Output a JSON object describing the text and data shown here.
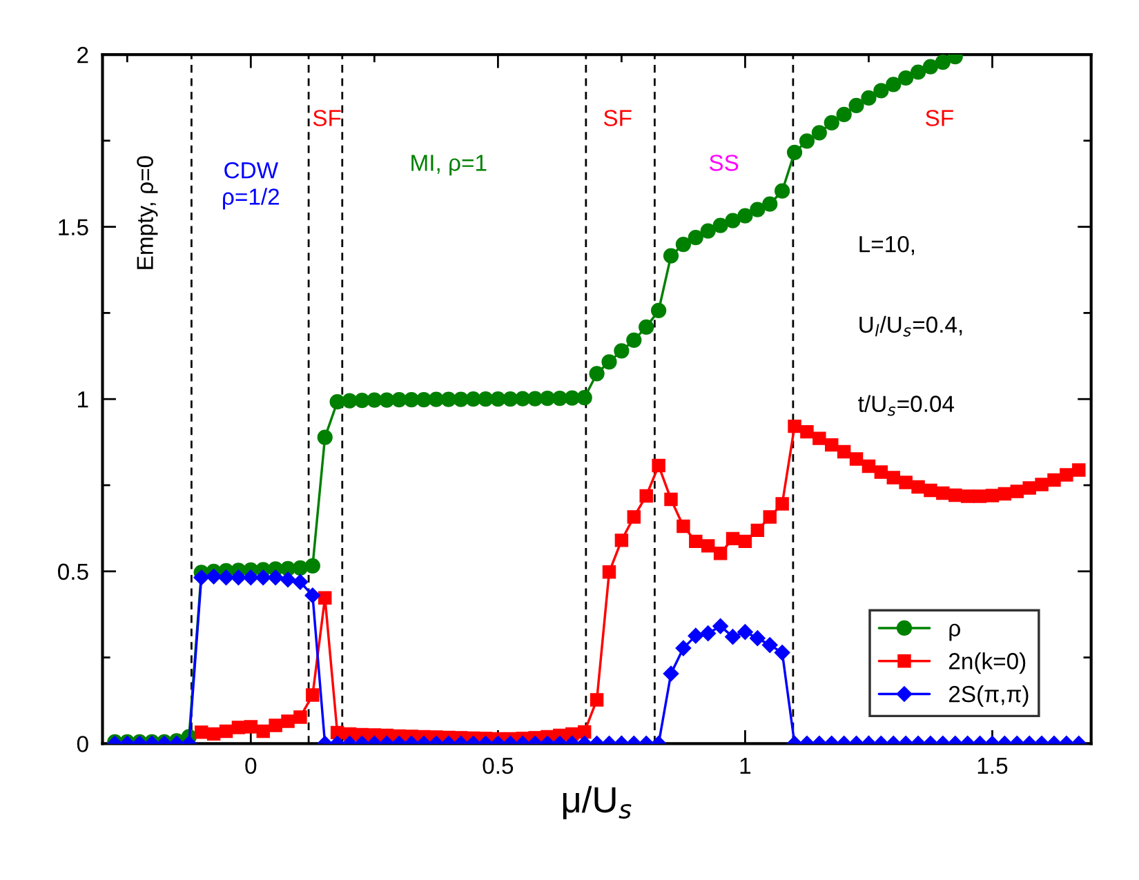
{
  "chart_data": {
    "type": "line",
    "xlabel": "μ/U$_{s}$",
    "x": [
      -0.275,
      -0.25,
      -0.225,
      -0.2,
      -0.175,
      -0.15,
      -0.125,
      -0.1,
      -0.075,
      -0.05,
      -0.025,
      0,
      0.025,
      0.05,
      0.075,
      0.1,
      0.125,
      0.15,
      0.175,
      0.2,
      0.225,
      0.25,
      0.275,
      0.3,
      0.325,
      0.35,
      0.375,
      0.4,
      0.425,
      0.45,
      0.475,
      0.5,
      0.525,
      0.55,
      0.575,
      0.6,
      0.625,
      0.65,
      0.675,
      0.7,
      0.725,
      0.75,
      0.775,
      0.8,
      0.825,
      0.85,
      0.875,
      0.9,
      0.925,
      0.95,
      0.975,
      1,
      1.025,
      1.05,
      1.075,
      1.1,
      1.125,
      1.15,
      1.175,
      1.2,
      1.225,
      1.25,
      1.275,
      1.3,
      1.325,
      1.35,
      1.375,
      1.4,
      1.425,
      1.45,
      1.475,
      1.5,
      1.525,
      1.55,
      1.575,
      1.6,
      1.625,
      1.65,
      1.675
    ],
    "series": [
      {
        "name": "ρ",
        "color": "#008000",
        "marker": "circle",
        "values": [
          0.005,
          0.005,
          0.005,
          0.005,
          0.005,
          0.008,
          0.02,
          0.497,
          0.5,
          0.502,
          0.503,
          0.504,
          0.505,
          0.507,
          0.508,
          0.51,
          0.516,
          0.889,
          0.992,
          0.995,
          0.996,
          0.997,
          0.997,
          0.998,
          0.998,
          0.998,
          0.999,
          0.999,
          0.999,
          1.0,
          1.0,
          1.0,
          1.0,
          1.001,
          1.001,
          1.002,
          1.002,
          1.003,
          1.004,
          1.074,
          1.108,
          1.14,
          1.171,
          1.209,
          1.257,
          1.416,
          1.449,
          1.469,
          1.488,
          1.504,
          1.518,
          1.532,
          1.55,
          1.566,
          1.604,
          1.716,
          1.749,
          1.773,
          1.802,
          1.826,
          1.852,
          1.874,
          1.895,
          1.913,
          1.932,
          1.949,
          1.965,
          1.978,
          1.994,
          null,
          null,
          null,
          null,
          null,
          null,
          null,
          null,
          null,
          null
        ]
      },
      {
        "name": "2n(k=0)",
        "color": "#ff0000",
        "marker": "square",
        "values": [
          null,
          null,
          null,
          null,
          null,
          null,
          null,
          0.033,
          0.028,
          0.036,
          0.047,
          0.049,
          0.036,
          0.053,
          0.065,
          0.077,
          0.141,
          0.423,
          0.032,
          0.028,
          0.026,
          0.025,
          0.024,
          0.022,
          0.021,
          0.02,
          0.019,
          0.018,
          0.017,
          0.016,
          0.015,
          0.014,
          0.014,
          0.015,
          0.017,
          0.02,
          0.024,
          0.028,
          0.034,
          0.127,
          0.498,
          0.59,
          0.658,
          0.719,
          0.807,
          0.709,
          0.631,
          0.587,
          0.574,
          0.552,
          0.595,
          0.587,
          0.619,
          0.658,
          0.696,
          0.921,
          0.905,
          0.886,
          0.867,
          0.847,
          0.826,
          0.805,
          0.788,
          0.772,
          0.758,
          0.745,
          0.735,
          0.727,
          0.721,
          0.718,
          0.718,
          0.72,
          0.725,
          0.732,
          0.742,
          0.752,
          0.765,
          0.78,
          0.794
        ]
      },
      {
        "name": "2S(π,π)",
        "color": "#0000ff",
        "marker": "diamond",
        "values": [
          0,
          0,
          0,
          0,
          0,
          0,
          0,
          0.482,
          0.485,
          0.482,
          0.482,
          0.482,
          0.482,
          0.482,
          0.476,
          0.469,
          0.43,
          0,
          0,
          0,
          0,
          0,
          0,
          0,
          0,
          0,
          0,
          0,
          0,
          0,
          0,
          0,
          0,
          0,
          0,
          0,
          0,
          0,
          0,
          0,
          0,
          0,
          0,
          0,
          0,
          0.203,
          0.277,
          0.313,
          0.32,
          0.341,
          0.31,
          0.324,
          0.306,
          0.286,
          0.264,
          0,
          0,
          0,
          0,
          0,
          0,
          0,
          0,
          0,
          0,
          0,
          0,
          0,
          0,
          0,
          0,
          0,
          0,
          0,
          0,
          0,
          0,
          0,
          0
        ]
      }
    ],
    "xlim": [
      -0.3,
      1.7
    ],
    "ylim": [
      0,
      2
    ],
    "xticks": [
      {
        "value": -0.25,
        "label": null
      },
      0,
      {
        "value": 0.25,
        "label": null
      },
      0.5,
      {
        "value": 0.75,
        "label": null
      },
      1,
      {
        "value": 1.25,
        "label": null
      },
      1.5
    ],
    "yticks": [
      0,
      {
        "value": 0.25,
        "label": null
      },
      0.5,
      {
        "value": 0.75,
        "label": null
      },
      1,
      {
        "value": 1.25,
        "label": null
      },
      1.5,
      {
        "value": 1.75,
        "label": null
      },
      2
    ],
    "ref_lines": [
      {
        "axis": "x",
        "value": -0.12,
        "color": "#000000",
        "line_style": "dashed"
      },
      {
        "axis": "x",
        "value": 0.117,
        "color": "#000000",
        "line_style": "dashed"
      },
      {
        "axis": "x",
        "value": 0.185,
        "color": "#000000",
        "line_style": "dashed"
      },
      {
        "axis": "x",
        "value": 0.678,
        "color": "#000000",
        "line_style": "dashed"
      },
      {
        "axis": "x",
        "value": 0.817,
        "color": "#000000",
        "line_style": "dashed"
      },
      {
        "axis": "x",
        "value": 1.097,
        "color": "#000000",
        "line_style": "dashed"
      }
    ],
    "annotations": [
      "Empty, ρ=0",
      "CDW\nρ=1/2",
      "SF",
      "MI, ρ=1",
      "SF",
      "SS",
      "SF",
      "L=10,",
      "U$_{l}$/U$_{s}$=0.4,",
      "t/U$_{s}$=0.04"
    ],
    "legend": "bottom right",
    "grid": false,
    "line_style": "solid"
  }
}
